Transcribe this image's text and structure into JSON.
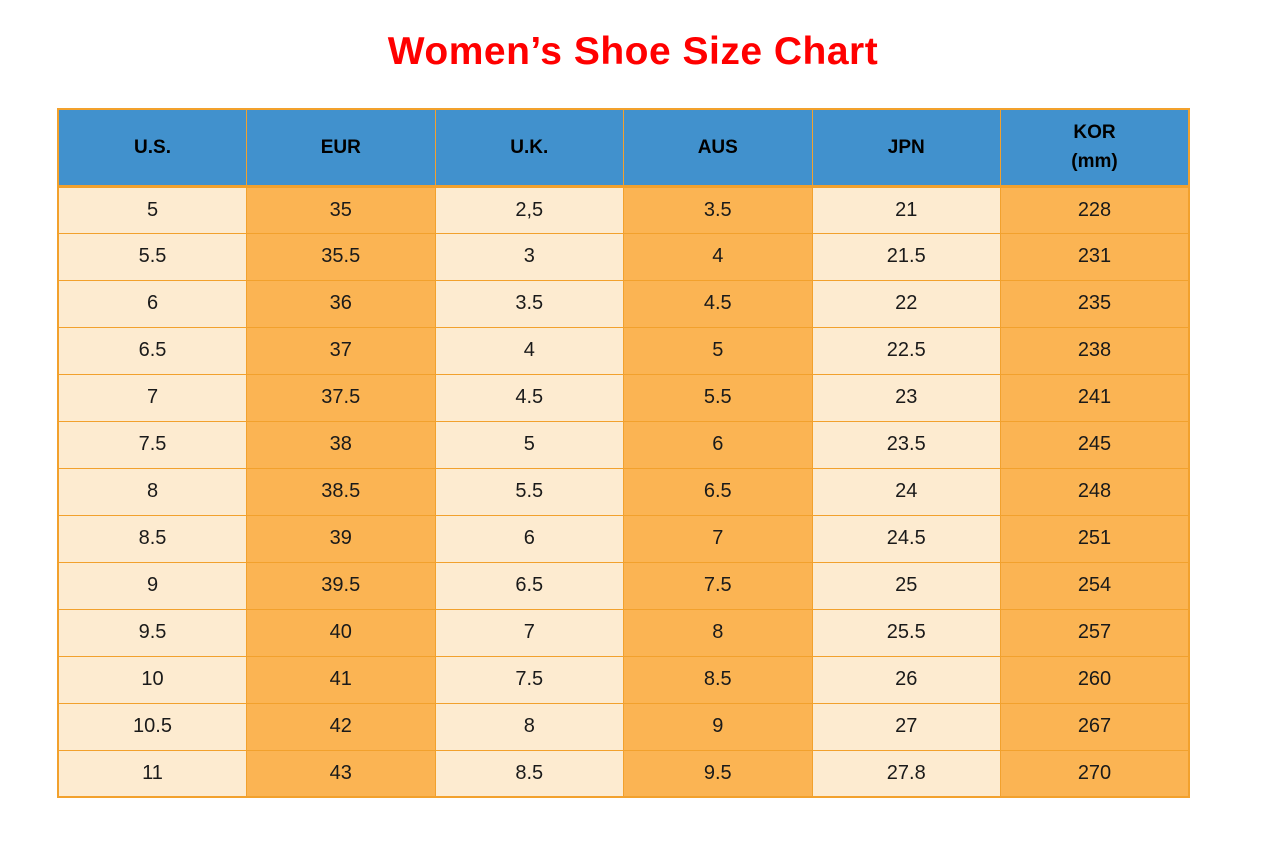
{
  "title": "Women’s Shoe Size Chart",
  "colors": {
    "title_color": "#FF0000",
    "header_bg": "#4191CD",
    "header_text": "#000000",
    "cell_light": "#FDEBD0",
    "cell_orange": "#FBB453",
    "border_color": "#F2A12D",
    "text_color": "#1A1A1A"
  },
  "chart_data": {
    "type": "table",
    "title": "Women’s Shoe Size Chart",
    "columns": [
      "U.S.",
      "EUR",
      "U.K.",
      "AUS",
      "JPN",
      "KOR (mm)"
    ],
    "columns_display": [
      "U.S.",
      "EUR",
      "U.K.",
      "AUS",
      "JPN",
      "KOR\n(mm)"
    ],
    "rows": [
      [
        "5",
        "35",
        "2,5",
        "3.5",
        "21",
        "228"
      ],
      [
        "5.5",
        "35.5",
        "3",
        "4",
        "21.5",
        "231"
      ],
      [
        "6",
        "36",
        "3.5",
        "4.5",
        "22",
        "235"
      ],
      [
        "6.5",
        "37",
        "4",
        "5",
        "22.5",
        "238"
      ],
      [
        "7",
        "37.5",
        "4.5",
        "5.5",
        "23",
        "241"
      ],
      [
        "7.5",
        "38",
        "5",
        "6",
        "23.5",
        "245"
      ],
      [
        "8",
        "38.5",
        "5.5",
        "6.5",
        "24",
        "248"
      ],
      [
        "8.5",
        "39",
        "6",
        "7",
        "24.5",
        "251"
      ],
      [
        "9",
        "39.5",
        "6.5",
        "7.5",
        "25",
        "254"
      ],
      [
        "9.5",
        "40",
        "7",
        "8",
        "25.5",
        "257"
      ],
      [
        "10",
        "41",
        "7.5",
        "8.5",
        "26",
        "260"
      ],
      [
        "10.5",
        "42",
        "8",
        "9",
        "27",
        "267"
      ],
      [
        "11",
        "43",
        "8.5",
        "9.5",
        "27.8",
        "270"
      ]
    ],
    "layout": {
      "column_fill_pattern": [
        "light",
        "orange",
        "light",
        "orange",
        "light",
        "orange"
      ],
      "grid": true,
      "header_style": "blue"
    }
  }
}
